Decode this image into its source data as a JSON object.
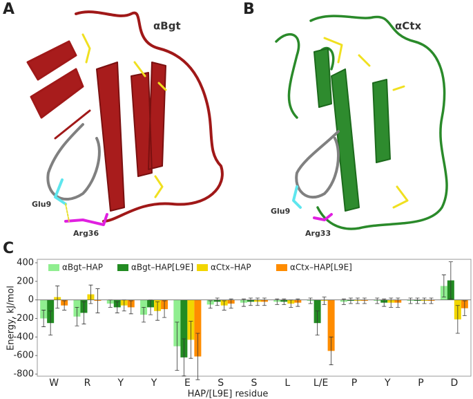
{
  "panels": [
    {
      "label": "A",
      "title": "αBgt",
      "annotations": [
        "Glu9",
        "Arg36"
      ]
    },
    {
      "label": "B",
      "title": "αCtx",
      "annotations": [
        "Glu9",
        "Arg33"
      ]
    }
  ],
  "chart_label": "C",
  "chart_data": {
    "type": "bar",
    "ylabel": "Energy, kJ/mol",
    "xlabel": "HAP/[L9E] residue",
    "categories": [
      "W",
      "R",
      "Y",
      "Y",
      "E",
      "S",
      "S",
      "L",
      "L/E",
      "P",
      "Y",
      "P",
      "D"
    ],
    "series": [
      {
        "name": "αBgt–HAP",
        "color": "#90ee90",
        "values": [
          -200,
          -180,
          -40,
          -160,
          -500,
          -50,
          -30,
          -20,
          -10,
          -20,
          -10,
          -10,
          150
        ],
        "errors": [
          90,
          100,
          40,
          80,
          260,
          40,
          40,
          30,
          30,
          30,
          30,
          30,
          120
        ]
      },
      {
        "name": "αBgt–HAP[L9E]",
        "color": "#228b22",
        "values": [
          -250,
          -140,
          -80,
          -80,
          -620,
          -20,
          -20,
          -20,
          -250,
          -10,
          -30,
          -10,
          210
        ],
        "errors": [
          130,
          120,
          60,
          80,
          200,
          40,
          40,
          30,
          130,
          30,
          40,
          30,
          200
        ]
      },
      {
        "name": "αCtx–HAP",
        "color": "#f2d600",
        "values": [
          30,
          60,
          -60,
          -120,
          -430,
          -60,
          -20,
          -40,
          -10,
          -10,
          -30,
          -10,
          -210
        ],
        "errors": [
          120,
          100,
          60,
          100,
          200,
          50,
          40,
          40,
          40,
          30,
          50,
          30,
          150
        ]
      },
      {
        "name": "αCtx–HAP[L9E]",
        "color": "#ff8c00",
        "values": [
          -60,
          -10,
          -80,
          -100,
          -610,
          -40,
          -20,
          -30,
          -550,
          -10,
          -30,
          -10,
          -90
        ],
        "errors": [
          50,
          130,
          70,
          90,
          250,
          50,
          40,
          40,
          150,
          30,
          50,
          30,
          80
        ]
      }
    ],
    "ylim": [
      -800,
      400
    ],
    "yticks": [
      -800,
      -600,
      -400,
      -200,
      0,
      200,
      400
    ],
    "grid": false,
    "legend": "top"
  }
}
